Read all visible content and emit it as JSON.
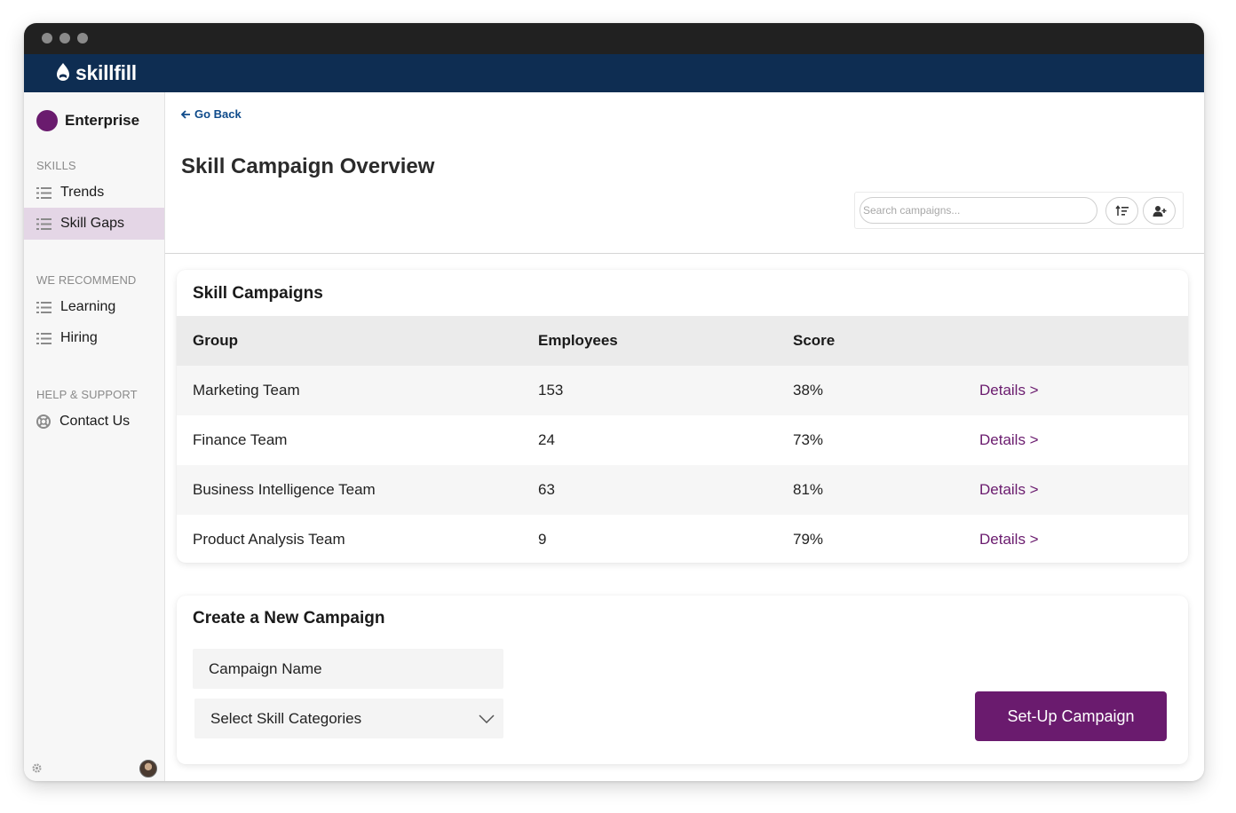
{
  "app": {
    "brand": "skillfill"
  },
  "sidebar": {
    "org_name": "Enterprise",
    "sections": [
      {
        "label": "SKILLS",
        "items": [
          {
            "label": "Trends",
            "active": false
          },
          {
            "label": "Skill Gaps",
            "active": true
          }
        ]
      },
      {
        "label": "WE RECOMMEND",
        "items": [
          {
            "label": "Learning",
            "active": false
          },
          {
            "label": "Hiring",
            "active": false
          }
        ]
      },
      {
        "label": "HELP & SUPPORT",
        "items": [
          {
            "label": "Contact Us",
            "active": false
          }
        ]
      }
    ]
  },
  "main": {
    "back_label": "Go Back",
    "title": "Skill Campaign Overview",
    "search": {
      "placeholder": "Search campaigns..."
    }
  },
  "campaigns": {
    "title": "Skill Campaigns",
    "columns": [
      "Group",
      "Employees",
      "Score"
    ],
    "rows": [
      {
        "group": "Marketing Team",
        "employees": "153",
        "score": "38%",
        "link": "Details >"
      },
      {
        "group": "Finance Team",
        "employees": "24",
        "score": "73%",
        "link": "Details >"
      },
      {
        "group": "Business Intelligence Team",
        "employees": "63",
        "score": "81%",
        "link": "Details >"
      },
      {
        "group": "Product Analysis Team",
        "employees": "9",
        "score": "79%",
        "link": "Details >"
      }
    ]
  },
  "create": {
    "title": "Create a New Campaign",
    "name_field": "Campaign Name",
    "category_select": "Select Skill Categories",
    "submit_label": "Set-Up Campaign"
  },
  "colors": {
    "brand_navy": "#0e2d52",
    "accent_purple": "#6a1b6e",
    "active_nav": "#e4d6e6"
  },
  "icons": [
    "skillfill-logo-icon",
    "list-icon",
    "lifebuoy-icon",
    "arrow-left-icon",
    "sort-icon",
    "add-user-icon",
    "chevron-down-icon",
    "gear-icon"
  ]
}
